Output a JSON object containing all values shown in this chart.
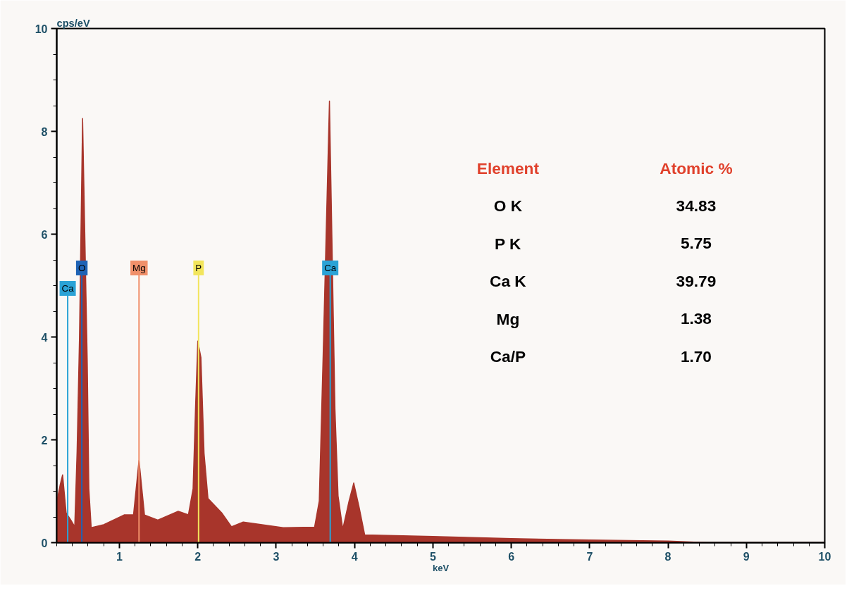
{
  "chart_data": {
    "type": "area",
    "xlabel": "keV",
    "ylabel": "cps/eV",
    "x": [
      0.2,
      0.245,
      0.275,
      0.32,
      0.38,
      0.43,
      0.46,
      0.49,
      0.53,
      0.59,
      0.61,
      0.64,
      0.8,
      1.06,
      1.18,
      1.25,
      1.32,
      1.49,
      1.75,
      1.88,
      1.94,
      1.97,
      2.0,
      2.04,
      2.08,
      2.13,
      2.31,
      2.43,
      2.58,
      3.09,
      3.49,
      3.55,
      3.6,
      3.68,
      3.75,
      3.79,
      3.85,
      3.93,
      3.99,
      4.06,
      4.13,
      5.0,
      6.0,
      7.0,
      8.0,
      8.5,
      10.0
    ],
    "series": [
      {
        "color": "#a8352b",
        "values": [
          0.79,
          1.13,
          1.32,
          0.58,
          0.44,
          0.31,
          1.78,
          3.95,
          8.25,
          3.48,
          1.05,
          0.29,
          0.35,
          0.54,
          0.54,
          1.6,
          0.54,
          0.44,
          0.61,
          0.54,
          1.05,
          2.57,
          3.92,
          3.6,
          1.74,
          0.86,
          0.57,
          0.31,
          0.4,
          0.29,
          0.3,
          0.81,
          3.67,
          8.59,
          2.61,
          0.91,
          0.26,
          0.81,
          1.16,
          0.68,
          0.15,
          0.12,
          0.08,
          0.05,
          0.03,
          0,
          0
        ]
      }
    ],
    "xlim": [
      0.2,
      10
    ],
    "xticks": [
      1,
      2,
      3,
      4,
      5,
      6,
      7,
      8,
      9,
      10
    ],
    "ylim": [
      0,
      10
    ],
    "yticks": [
      0,
      2,
      4,
      6,
      8,
      10
    ],
    "grid": false,
    "ref_lines": [
      {
        "axis": "x",
        "value": 0.34,
        "label": "Ca",
        "color": "#2ba3d6"
      },
      {
        "axis": "x",
        "value": 0.52,
        "label": "O",
        "color": "#1f63b5"
      },
      {
        "axis": "x",
        "value": 1.25,
        "label": "Mg",
        "color": "#f0906a"
      },
      {
        "axis": "x",
        "value": 2.01,
        "label": "P",
        "color": "#f2e55c"
      },
      {
        "axis": "x",
        "value": 3.69,
        "label": "Ca",
        "color": "#2ba3d6"
      }
    ],
    "annotations": [
      "Element",
      "Atomic %",
      "O K",
      "34.83",
      "P K",
      "5.75",
      "Ca K",
      "39.79",
      "Mg",
      "1.38",
      "Ca/P",
      "1.70"
    ]
  }
}
